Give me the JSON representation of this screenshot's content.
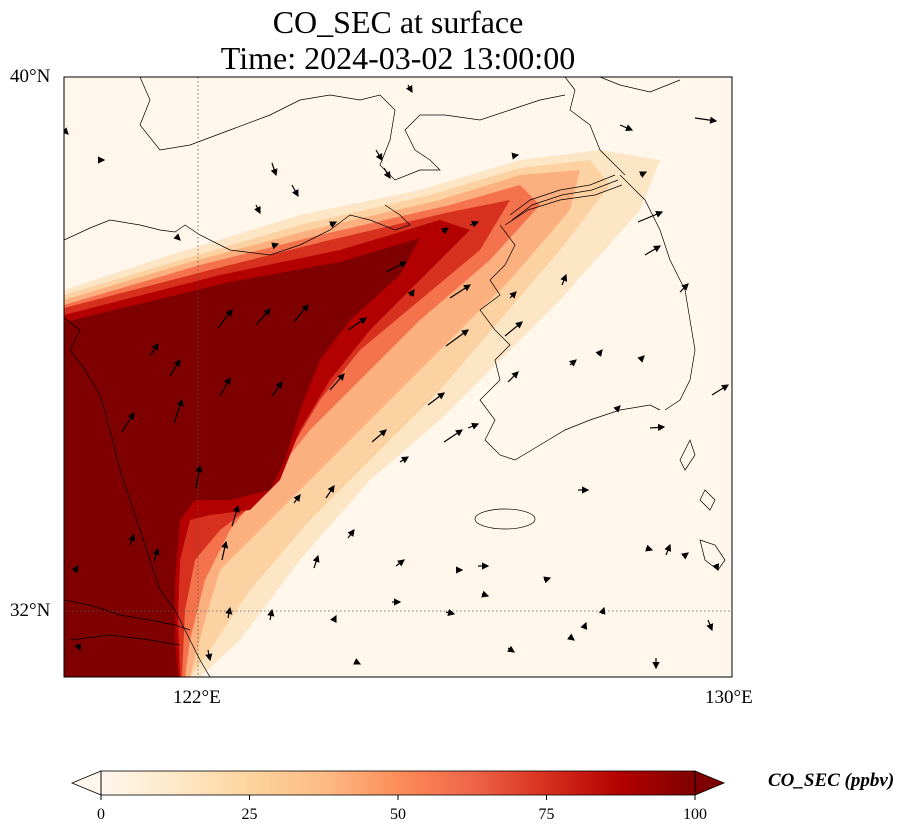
{
  "title": {
    "line1": "CO_SEC at surface",
    "line2": "Time: 2024-03-02 13:00:00"
  },
  "axes": {
    "lat_ticks": [
      "40°N",
      "32°N"
    ],
    "lon_ticks": [
      "122°E",
      "130°E"
    ],
    "lat_range": [
      31,
      40
    ],
    "lon_range": [
      120,
      130
    ]
  },
  "colorbar": {
    "label": "CO_SEC (ppbv)",
    "ticks": [
      "0",
      "25",
      "50",
      "75",
      "100"
    ],
    "range": [
      0,
      100
    ],
    "colormap": "OrRd",
    "colors": [
      "#fff7ec",
      "#fee8c8",
      "#fdd49e",
      "#fdbb84",
      "#fc8d59",
      "#ef6548",
      "#d7301f",
      "#b30000",
      "#7f0000"
    ]
  },
  "chart_data": {
    "type": "heatmap",
    "variable": "CO_SEC",
    "level": "surface",
    "units": "ppbv",
    "time": "2024-03-02 13:00:00",
    "plume": {
      "description_values_ppbv": {
        "west_mainland_120E_33N_37N": 100,
        "yellow_sea_core_121_123E_34_36N": 100,
        "plume_edge_to_korea_coast": 40,
        "korea_peninsula": 5,
        "east_sea_and_open_ocean": 0
      }
    },
    "wind_vectors": "black arrows, predominantly southwesterly over the Yellow Sea"
  }
}
